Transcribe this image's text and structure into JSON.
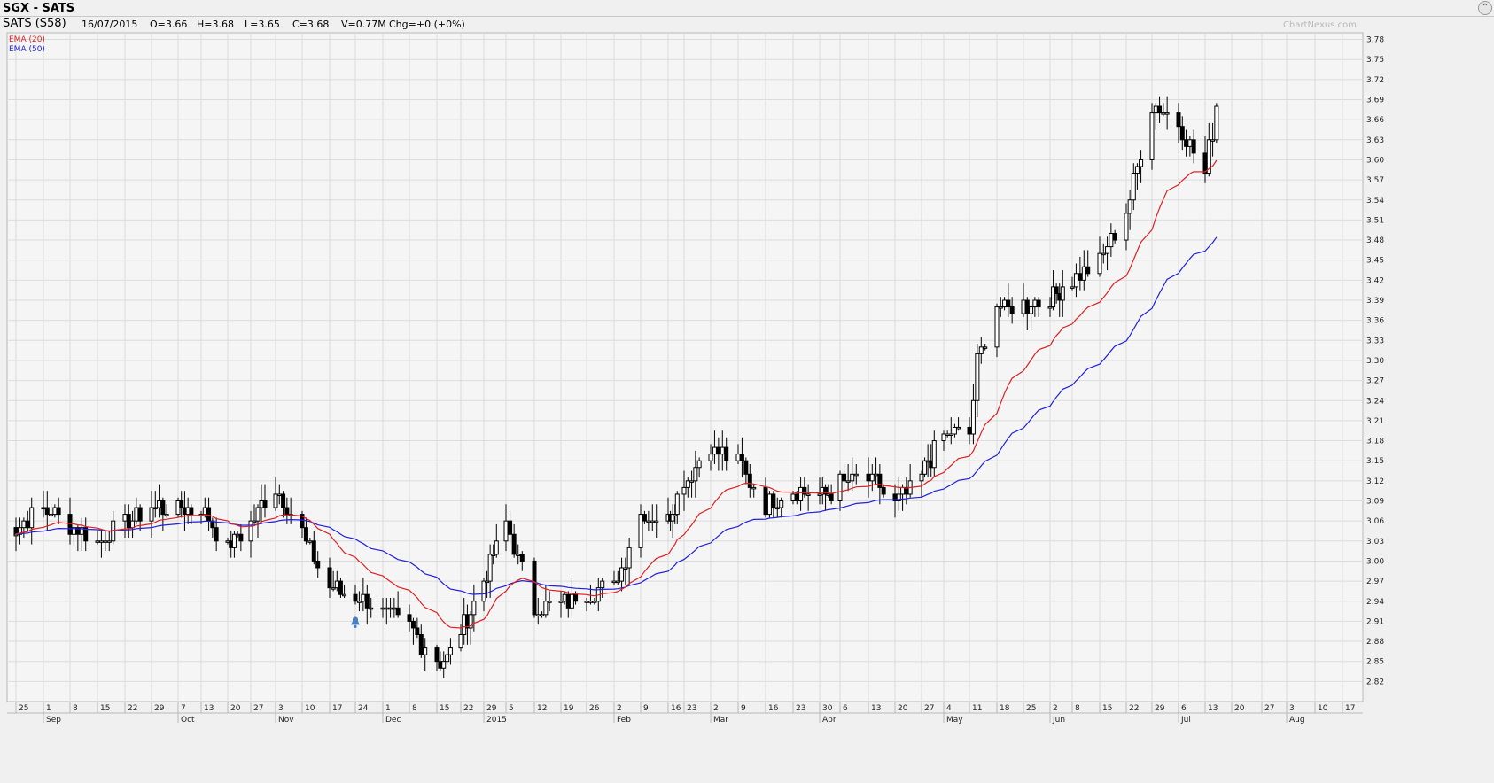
{
  "header": {
    "title": "SGX - SATS",
    "collapse_icon": "chevron-up-icon"
  },
  "info": {
    "symbol": "SATS (S58)",
    "date": "16/07/2015",
    "open": "O=3.66",
    "high": "H=3.68",
    "low": "L=3.65",
    "close": "C=3.68",
    "volume": "V=0.77M",
    "change": "Chg=+0 (+0%)"
  },
  "watermark": "ChartNexus.com",
  "colors": {
    "ema20": "#e02020",
    "ema50": "#2020e0",
    "alert_bell": "#4a7fc0",
    "candle": "#000000",
    "plot_bg": "#f5f5f5",
    "grid": "#dcdcdc"
  },
  "chart_data": {
    "type": "candlestick",
    "ylim": [
      2.79,
      3.79
    ],
    "y_ticks": [
      "3.78",
      "3.75",
      "3.72",
      "3.69",
      "3.66",
      "3.63",
      "3.60",
      "3.57",
      "3.54",
      "3.51",
      "3.48",
      "3.45",
      "3.42",
      "3.39",
      "3.36",
      "3.33",
      "3.30",
      "3.27",
      "3.24",
      "3.21",
      "3.18",
      "3.15",
      "3.12",
      "3.09",
      "3.06",
      "3.03",
      "3.00",
      "2.97",
      "2.94",
      "2.91",
      "2.88",
      "2.85",
      "2.82"
    ],
    "x_ticks": [
      "25",
      "1",
      "8",
      "15",
      "22",
      "29",
      "7",
      "13",
      "20",
      "27",
      "3",
      "10",
      "17",
      "24",
      "1",
      "8",
      "15",
      "22",
      "29",
      "5",
      "12",
      "19",
      "26",
      "2",
      "9",
      "16",
      "23",
      "2",
      "9",
      "16",
      "23",
      "30",
      "6",
      "13",
      "20",
      "27",
      "4",
      "11",
      "18",
      "25",
      "2",
      "8",
      "15",
      "22",
      "29",
      "6",
      "13",
      "20",
      "27",
      "3",
      "10",
      "17"
    ],
    "month_labels": [
      "Sep",
      "Oct",
      "Nov",
      "Dec",
      "2015",
      "Feb",
      "Mar",
      "Apr",
      "May",
      "Jun",
      "Jul",
      "Aug"
    ],
    "legend": [
      {
        "name": "EMA (20)",
        "color": "#e02020"
      },
      {
        "name": "EMA (50)",
        "color": "#2020e0"
      }
    ],
    "alert_icon": "bell-icon",
    "alert_date": "24 Nov",
    "alert_value": 2.91,
    "keypoints": [
      {
        "date": "Aug 22",
        "close": 3.04
      },
      {
        "date": "Sep 1",
        "close": 3.08
      },
      {
        "date": "Sep 15",
        "close": 3.03
      },
      {
        "date": "Sep 29",
        "close": 3.08
      },
      {
        "date": "Oct 13",
        "close": 3.08
      },
      {
        "date": "Oct 20",
        "close": 3.02
      },
      {
        "date": "Oct 27",
        "close": 3.06
      },
      {
        "date": "Nov 3",
        "close": 3.11
      },
      {
        "date": "Nov 10",
        "close": 3.04
      },
      {
        "date": "Nov 17",
        "close": 2.96
      },
      {
        "date": "Nov 24",
        "close": 2.95
      },
      {
        "date": "Dec 8",
        "close": 2.9
      },
      {
        "date": "Dec 15",
        "close": 2.85
      },
      {
        "date": "Dec 19",
        "close": 2.86
      },
      {
        "date": "Dec 29",
        "close": 2.97
      },
      {
        "date": "Jan 5",
        "close": 3.06
      },
      {
        "date": "Jan 12",
        "close": 2.93
      },
      {
        "date": "Jan 19",
        "close": 2.94
      },
      {
        "date": "Jan 26",
        "close": 2.95
      },
      {
        "date": "Feb 2",
        "close": 2.96
      },
      {
        "date": "Feb 9",
        "close": 3.07
      },
      {
        "date": "Feb 16",
        "close": 3.06
      },
      {
        "date": "Feb 23",
        "close": 3.12
      },
      {
        "date": "Mar 2",
        "close": 3.17
      },
      {
        "date": "Mar 9",
        "close": 3.15
      },
      {
        "date": "Mar 16",
        "close": 3.08
      },
      {
        "date": "Mar 23",
        "close": 3.11
      },
      {
        "date": "Apr 1",
        "close": 3.1
      },
      {
        "date": "Apr 8",
        "close": 3.12
      },
      {
        "date": "Apr 15",
        "close": 3.12
      },
      {
        "date": "Apr 20",
        "close": 3.08
      },
      {
        "date": "Apr 27",
        "close": 3.13
      },
      {
        "date": "May 4",
        "close": 3.19
      },
      {
        "date": "May 11",
        "close": 3.19
      },
      {
        "date": "May 13",
        "close": 3.3
      },
      {
        "date": "May 18",
        "close": 3.38
      },
      {
        "date": "May 25",
        "close": 3.38
      },
      {
        "date": "Jun 2",
        "close": 3.4
      },
      {
        "date": "Jun 8",
        "close": 3.42
      },
      {
        "date": "Jun 15",
        "close": 3.45
      },
      {
        "date": "Jun 22",
        "close": 3.52
      },
      {
        "date": "Jun 29",
        "close": 3.68
      },
      {
        "date": "Jul 6",
        "close": 3.66
      },
      {
        "date": "Jul 13",
        "close": 3.58
      },
      {
        "date": "Jul 16",
        "close": 3.68
      }
    ]
  }
}
